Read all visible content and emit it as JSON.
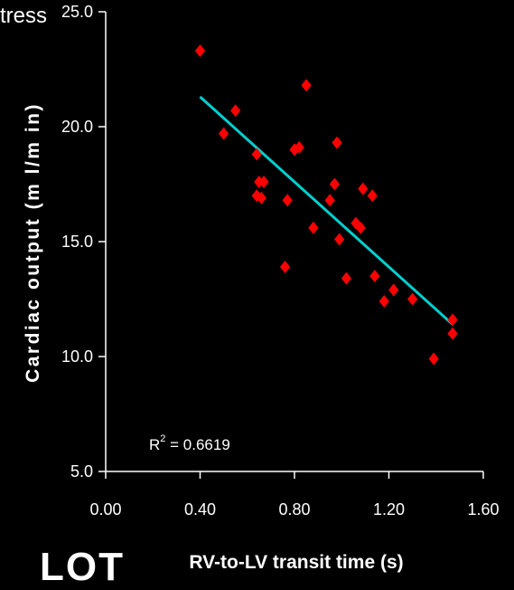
{
  "partial_text_top": "tress",
  "partial_text_bottom": "LOT",
  "chart_data": {
    "type": "scatter",
    "title": "",
    "xlabel": "RV-to-LV transit time (s)",
    "ylabel": "Cardiac output (m l/m in)",
    "xlim": [
      0.0,
      1.6
    ],
    "ylim": [
      5.0,
      25.0
    ],
    "x_ticks": [
      "0.00",
      "0.40",
      "0.80",
      "1.20",
      "1.60"
    ],
    "y_ticks": [
      "5.0",
      "10.0",
      "15.0",
      "20.0",
      "25.0"
    ],
    "grid": false,
    "legend": "none",
    "annotation": {
      "r2_base": "R",
      "r2_sup": "2",
      "r2_value": " = 0.6619"
    },
    "marker_color": "#ff0000",
    "trend_color": "#00d0d0",
    "series": [
      {
        "points": [
          [
            0.4,
            23.3
          ],
          [
            0.5,
            19.7
          ],
          [
            0.55,
            20.7
          ],
          [
            0.64,
            18.8
          ],
          [
            0.64,
            17.0
          ],
          [
            0.65,
            17.6
          ],
          [
            0.66,
            16.9
          ],
          [
            0.67,
            17.6
          ],
          [
            0.76,
            13.9
          ],
          [
            0.77,
            16.8
          ],
          [
            0.8,
            19.0
          ],
          [
            0.82,
            19.1
          ],
          [
            0.85,
            21.8
          ],
          [
            0.88,
            15.6
          ],
          [
            0.95,
            16.8
          ],
          [
            0.97,
            17.5
          ],
          [
            0.98,
            19.3
          ],
          [
            0.99,
            15.1
          ],
          [
            1.02,
            13.4
          ],
          [
            1.06,
            15.8
          ],
          [
            1.08,
            15.6
          ],
          [
            1.09,
            17.3
          ],
          [
            1.13,
            17.0
          ],
          [
            1.14,
            13.5
          ],
          [
            1.18,
            12.4
          ],
          [
            1.22,
            12.9
          ],
          [
            1.3,
            12.5
          ],
          [
            1.39,
            9.9
          ],
          [
            1.47,
            11.0
          ],
          [
            1.47,
            11.6
          ]
        ],
        "trendline": [
          [
            0.4,
            21.3
          ],
          [
            1.47,
            11.4
          ]
        ]
      }
    ]
  }
}
